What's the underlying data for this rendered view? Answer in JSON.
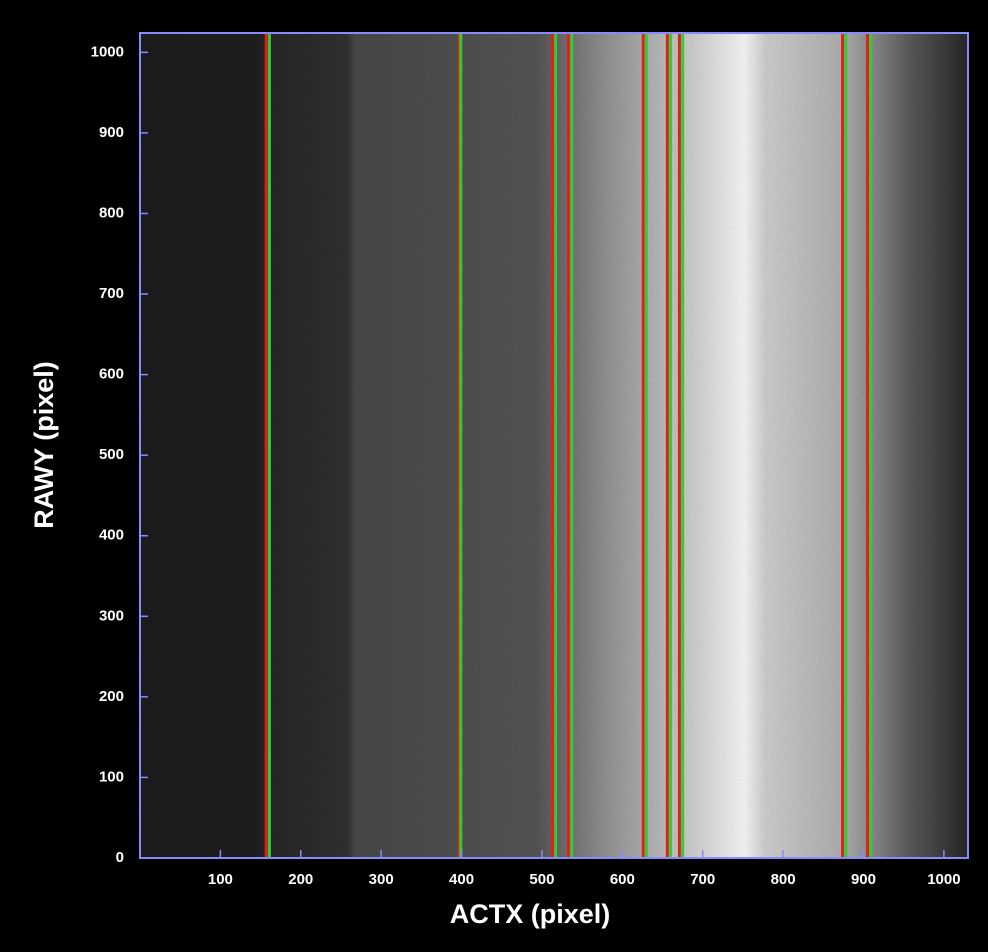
{
  "chart_data": {
    "type": "image",
    "xlabel": "ACTX (pixel)",
    "ylabel": "RAWY (pixel)",
    "xlim": [
      0,
      1030
    ],
    "ylim": [
      0,
      1024
    ],
    "xticks": [
      100,
      200,
      300,
      400,
      500,
      600,
      700,
      800,
      900,
      1000
    ],
    "yticks": [
      0,
      100,
      200,
      300,
      400,
      500,
      600,
      700,
      800,
      900,
      1000
    ],
    "series": [
      {
        "color": "#e0201a",
        "x": [
          157,
          397,
          513,
          533,
          626,
          656,
          671,
          874,
          905
        ]
      },
      {
        "color": "#33cc33",
        "x": [
          161,
          399,
          517,
          537,
          630,
          660,
          675,
          878,
          909
        ]
      }
    ]
  }
}
